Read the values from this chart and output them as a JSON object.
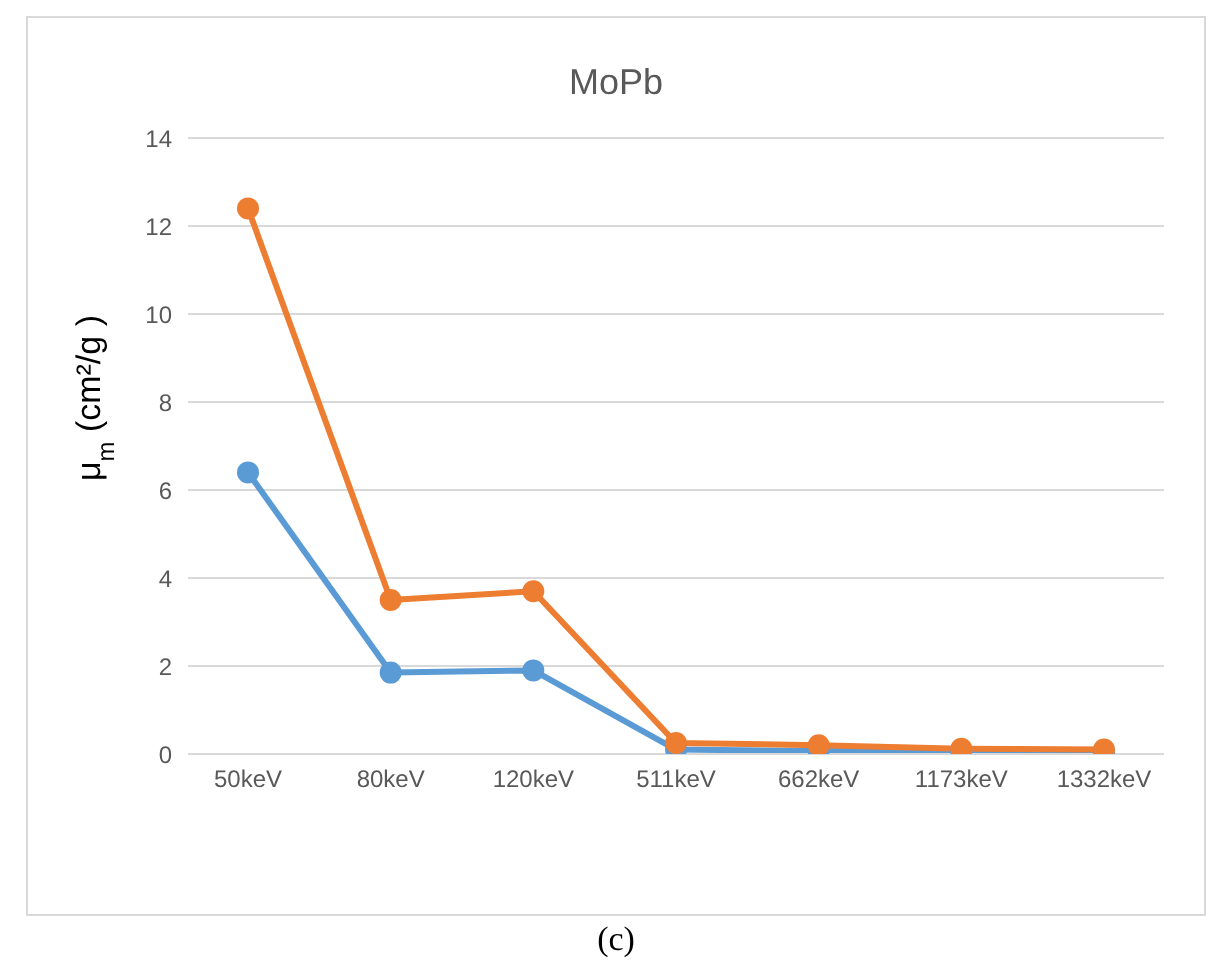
{
  "chart_data": {
    "type": "line",
    "title": "MoPb",
    "ylabel": "μ$_{m}$   (cm²/g )",
    "categories": [
      "50keV",
      "80keV",
      "120keV",
      "511keV",
      "662keV",
      "1173keV",
      "1332keV"
    ],
    "series": [
      {
        "color": "#5b9bd5",
        "values": [
          6.4,
          1.85,
          1.9,
          0.1,
          0.07,
          0.05,
          0.04
        ]
      },
      {
        "color": "#ed7d31",
        "values": [
          12.4,
          3.5,
          3.7,
          0.25,
          0.2,
          0.12,
          0.1
        ]
      }
    ],
    "ylim": [
      0,
      14
    ],
    "yticks": [
      0,
      2,
      4,
      6,
      8,
      10,
      12,
      14
    ],
    "grid": "y",
    "marker": "circle",
    "line_style": "solid",
    "annotations": [
      "(c)"
    ]
  }
}
